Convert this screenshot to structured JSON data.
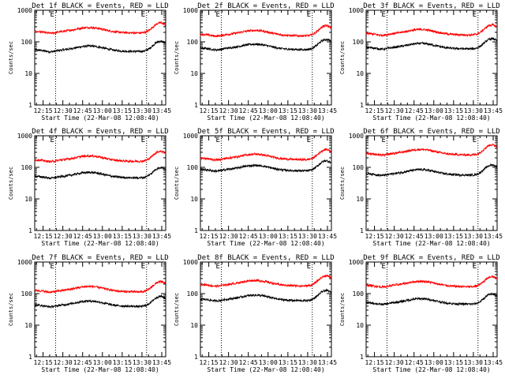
{
  "chart_data": {
    "type": "line",
    "panels": [
      {
        "title": "Det 1f BLACK = Events, RED = LLD",
        "events_base": 48,
        "lld_base": 185
      },
      {
        "title": "Det 2f BLACK = Events, RED = LLD",
        "events_base": 55,
        "lld_base": 150
      },
      {
        "title": "Det 3f BLACK = Events, RED = LLD",
        "events_base": 58,
        "lld_base": 160
      },
      {
        "title": "Det 4f BLACK = Events, RED = LLD",
        "events_base": 45,
        "lld_base": 150
      },
      {
        "title": "Det 5f BLACK = Events, RED = LLD",
        "events_base": 75,
        "lld_base": 170
      },
      {
        "title": "Det 6f BLACK = Events, RED = LLD",
        "events_base": 55,
        "lld_base": 240
      },
      {
        "title": "Det 7f BLACK = Events, RED = LLD",
        "events_base": 38,
        "lld_base": 110
      },
      {
        "title": "Det 8f BLACK = Events, RED = LLD",
        "events_base": 58,
        "lld_base": 170
      },
      {
        "title": "Det 9f BLACK = Events, RED = LLD",
        "events_base": 45,
        "lld_base": 160
      }
    ],
    "series": [
      {
        "name": "Events",
        "color": "#000000"
      },
      {
        "name": "LLD",
        "color": "#ff0000"
      }
    ],
    "x_ticks": [
      "12:15",
      "12:30",
      "12:45",
      "13:00",
      "13:15",
      "13:30",
      "13:45"
    ],
    "x_tick_minutes": [
      15,
      30,
      45,
      60,
      75,
      90,
      105
    ],
    "x_range_minutes": [
      8.67,
      108
    ],
    "xlabel": "Start Time (22-Mar-08 12:08:40)",
    "ylabel": "Counts/sec",
    "y_ticks": [
      "1",
      "10",
      "100",
      "1000"
    ],
    "y_tick_values": [
      1,
      10,
      100,
      1000
    ],
    "yscale": "log",
    "ylim": [
      1,
      1000
    ],
    "event_markers_minutes": [
      24.5,
      93.5
    ],
    "event_marker_label": "E",
    "grid": false
  }
}
